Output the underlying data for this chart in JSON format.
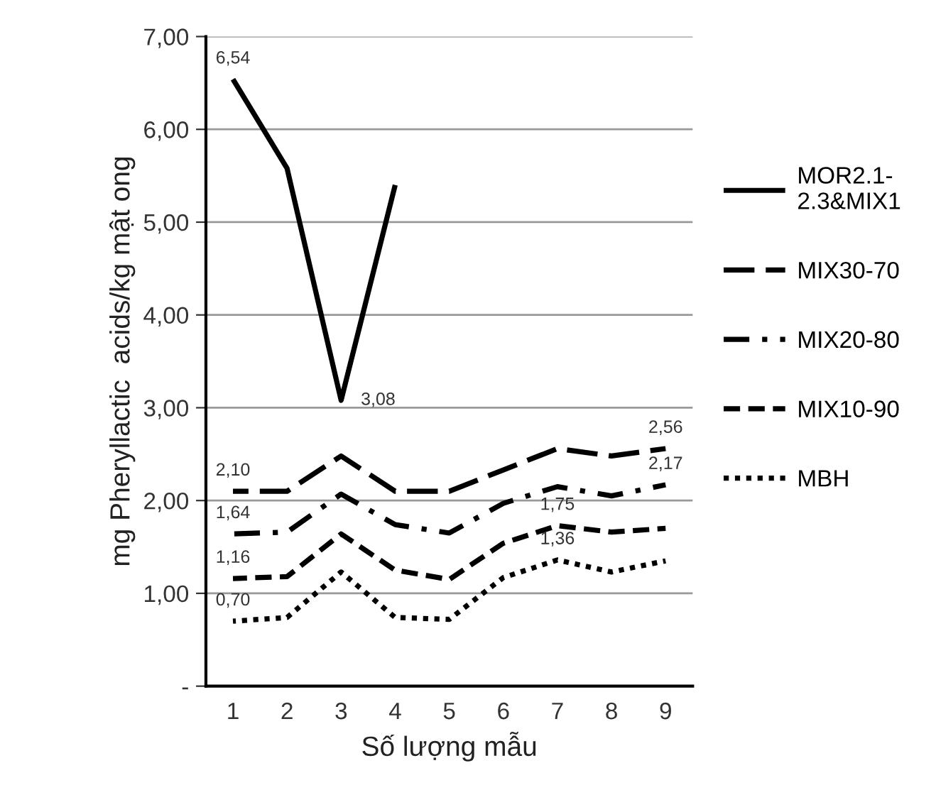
{
  "chart_data": {
    "type": "line",
    "xlabel": "Số lượng mẫu",
    "ylabel": "mg Pheryllactic  acids/kg mật ong",
    "categories": [
      "1",
      "2",
      "3",
      "4",
      "5",
      "6",
      "7",
      "8",
      "9"
    ],
    "series": [
      {
        "name": "MOR2.1-2.3&MIX1",
        "color": "#000000",
        "line_style": "solid",
        "values": [
          6.54,
          5.58,
          3.08,
          5.4,
          null,
          null,
          null,
          null,
          null
        ]
      },
      {
        "name": "MIX30-70",
        "color": "#000000",
        "line_style": "longdash",
        "values": [
          2.1,
          2.1,
          2.48,
          2.1,
          2.1,
          2.33,
          2.56,
          2.48,
          2.56
        ]
      },
      {
        "name": "MIX20-80",
        "color": "#000000",
        "line_style": "dashdot",
        "values": [
          1.64,
          1.66,
          2.07,
          1.74,
          1.65,
          1.97,
          2.15,
          2.05,
          2.17
        ]
      },
      {
        "name": "MIX10-90",
        "color": "#000000",
        "line_style": "dashed",
        "values": [
          1.16,
          1.18,
          1.64,
          1.25,
          1.15,
          1.54,
          1.73,
          1.66,
          1.7
        ]
      },
      {
        "name": "MBH",
        "color": "#000000",
        "line_style": "dotted",
        "values": [
          0.7,
          0.74,
          1.23,
          0.74,
          0.72,
          1.17,
          1.36,
          1.23,
          1.35
        ]
      }
    ],
    "ylim": [
      0,
      7
    ],
    "yticks": [
      {
        "value": 0,
        "label": "-"
      },
      {
        "value": 1,
        "label": "1,00"
      },
      {
        "value": 2,
        "label": "2,00"
      },
      {
        "value": 3,
        "label": "3,00"
      },
      {
        "value": 4,
        "label": "4,00"
      },
      {
        "value": 5,
        "label": "5,00"
      },
      {
        "value": 6,
        "label": "6,00"
      },
      {
        "value": 7,
        "label": "7,00"
      }
    ],
    "grid": "y",
    "legend": "right",
    "marker": "none",
    "annotations": [
      {
        "text": "6,54",
        "x": "1",
        "y": 6.54
      },
      {
        "text": "3,08",
        "x": "3",
        "y": 3.08
      },
      {
        "text": "2,10",
        "x": "1",
        "y": 2.1
      },
      {
        "text": "2,56",
        "x": "9",
        "y": 2.56
      },
      {
        "text": "1,64",
        "x": "1",
        "y": 1.64
      },
      {
        "text": "2,17",
        "x": "9",
        "y": 2.17
      },
      {
        "text": "1,16",
        "x": "1",
        "y": 1.16
      },
      {
        "text": "1,75",
        "x": "7",
        "y": 1.73
      },
      {
        "text": "0,70",
        "x": "1",
        "y": 0.7
      },
      {
        "text": "1,36",
        "x": "7",
        "y": 1.36
      }
    ]
  }
}
